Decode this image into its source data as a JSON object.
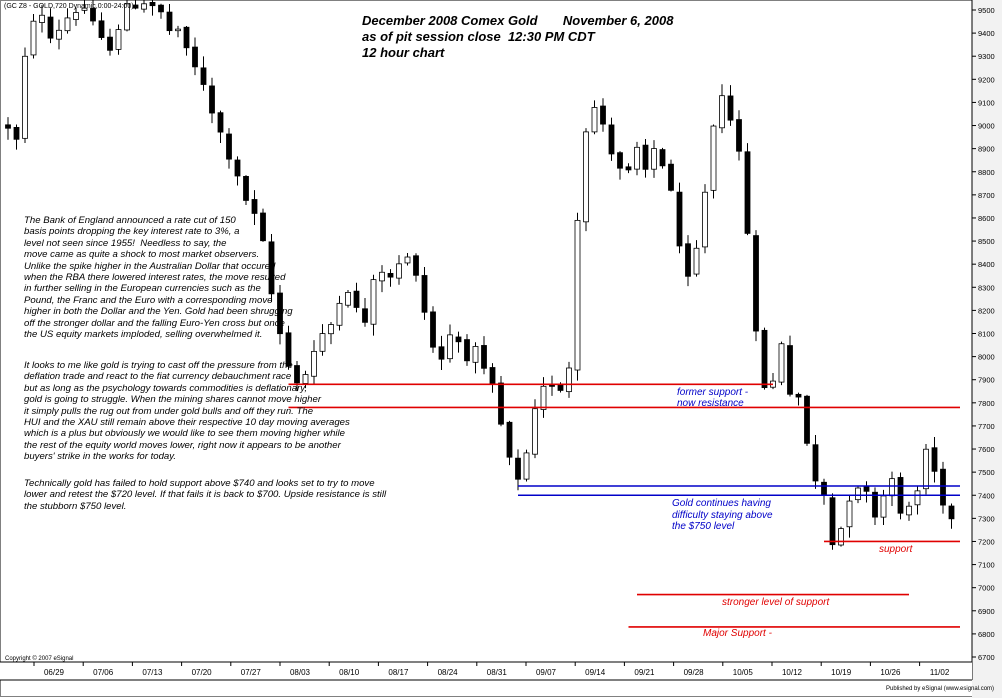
{
  "window": {
    "symbol_label": "(GC Z8 - GOLD,720 Dynamic,0:00-24:00)",
    "copyright": "Copyright © 2007 eSignal",
    "publisher": "Published by eSignal (www.esignal.com)"
  },
  "header": {
    "line1": "December 2008 Comex Gold       November 6, 2008",
    "line2": "as of pit session close  12:30 PM CDT",
    "line3": "12 hour chart"
  },
  "commentary": {
    "paragraph1": [
      "The Bank of England announced a rate cut of 150",
      "basis points dropping the key interest rate to 3%, a",
      "level not seen since 1955!  Needless to say, the",
      "move came as quite a shock to most market observers.",
      "Unlike the spike higher in the Australian Dollar that occured",
      "when the RBA there lowered interest rates, the move resulted",
      "in further selling in the European currencies such as the",
      "Pound, the Franc and the Euro with a corresponding move",
      "higher in both the Dollar and the Yen. Gold had been shrugging",
      "off the stronger dollar and the falling Euro-Yen cross but once",
      "the US equity markets imploded, selling overwhelmed it."
    ],
    "paragraph2": [
      "It looks to me like gold is trying to cast off the pressure from the",
      "deflation trade and react to the fiat currency debauchment race",
      "but as long as the psychology towards commodities is deflationary,",
      "gold is going to struggle. When the mining shares cannot move higher",
      "it simply pulls the rug out from under gold bulls and off they run. The",
      "HUI and the XAU still remain above their respective 10 day moving averages",
      "which is a plus but obviously we would like to see them moving higher while",
      "the rest of the equity world moves lower, right now it appears to be another",
      "buyers' strike in the works for today."
    ],
    "paragraph3": [
      "Technically gold has failed to hold support above $740 and looks set to try to move",
      "lower and retest the $720 level. If that fails it is back to $700. Upside resistance is still",
      "the stubborn $750 level."
    ]
  },
  "colors": {
    "background": "#ffffff",
    "candles": "#000000",
    "red_line": "#e00000",
    "blue_line": "#0000c8",
    "axis": "#000000",
    "panel": "#f2f2f2"
  },
  "chart_data": {
    "type": "candlestick",
    "title": "December 2008 Comex Gold",
    "timeframe": "12 hour chart",
    "x_tick_labels": [
      "06/29",
      "07/06",
      "07/13",
      "07/20",
      "07/27",
      "08/03",
      "08/10",
      "08/17",
      "08/24",
      "08/31",
      "09/07",
      "09/14",
      "09/21",
      "09/28",
      "10/05",
      "10/12",
      "10/19",
      "10/26",
      "11/02"
    ],
    "y_tick_labels": [
      "6700",
      "6800",
      "6900",
      "7000",
      "7100",
      "7200",
      "7300",
      "7400",
      "7500",
      "7600",
      "7700",
      "7800",
      "7900",
      "8000",
      "8100",
      "8200",
      "8300",
      "8400",
      "8500",
      "8600",
      "8700",
      "8800",
      "8900",
      "9000",
      "9100",
      "9200",
      "9300",
      "9400",
      "9500"
    ],
    "ylim": [
      6700,
      9500
    ],
    "grid": false,
    "legend": "none",
    "ohlc_path": [
      [
        0,
        9000
      ],
      [
        0.5,
        8930
      ],
      [
        1,
        9280
      ],
      [
        1.5,
        9470
      ],
      [
        2,
        9460
      ],
      [
        2.5,
        9380
      ],
      [
        3,
        9420
      ],
      [
        3.5,
        9470
      ],
      [
        4,
        9500
      ],
      [
        4.5,
        9510
      ],
      [
        5,
        9430
      ],
      [
        5.5,
        9360
      ],
      [
        6,
        9350
      ],
      [
        6.5,
        9430
      ],
      [
        7,
        9500
      ],
      [
        7.5,
        9530
      ],
      [
        8,
        9540
      ],
      [
        8.5,
        9520
      ],
      [
        9,
        9480
      ],
      [
        9.5,
        9410
      ],
      [
        10,
        9390
      ],
      [
        10.5,
        9330
      ],
      [
        11,
        9260
      ],
      [
        11.5,
        9160
      ],
      [
        12,
        9050
      ],
      [
        12.5,
        8960
      ],
      [
        13,
        8870
      ],
      [
        13.5,
        8760
      ],
      [
        14,
        8680
      ],
      [
        14.5,
        8600
      ],
      [
        15,
        8480
      ],
      [
        15.5,
        8270
      ],
      [
        16,
        8100
      ],
      [
        16.5,
        7980
      ],
      [
        17,
        7890
      ],
      [
        17.5,
        7930
      ],
      [
        18,
        8020
      ],
      [
        18.5,
        8080
      ],
      [
        19,
        8140
      ],
      [
        19.5,
        8260
      ],
      [
        20,
        8300
      ],
      [
        20.5,
        8200
      ],
      [
        21,
        8150
      ],
      [
        21.5,
        8310
      ],
      [
        22,
        8380
      ],
      [
        22.5,
        8330
      ],
      [
        23,
        8400
      ],
      [
        23.5,
        8420
      ],
      [
        24,
        8380
      ],
      [
        24.5,
        8200
      ],
      [
        25,
        8050
      ],
      [
        25.5,
        8000
      ],
      [
        26,
        8100
      ],
      [
        26.5,
        8070
      ],
      [
        27,
        8010
      ],
      [
        27.5,
        8020
      ],
      [
        28,
        7920
      ],
      [
        28.5,
        7860
      ],
      [
        29,
        7700
      ],
      [
        29.5,
        7550
      ],
      [
        30,
        7450
      ],
      [
        30.5,
        7560
      ],
      [
        31,
        7750
      ],
      [
        31.5,
        7850
      ],
      [
        32,
        7890
      ],
      [
        32.5,
        7870
      ],
      [
        33,
        7960
      ],
      [
        33.5,
        8600
      ],
      [
        34,
        9000
      ],
      [
        34.5,
        9070
      ],
      [
        35,
        9010
      ],
      [
        35.5,
        8900
      ],
      [
        36,
        8820
      ],
      [
        36.5,
        8790
      ],
      [
        37,
        8880
      ],
      [
        37.5,
        8800
      ],
      [
        38,
        8900
      ],
      [
        38.5,
        8840
      ],
      [
        39,
        8720
      ],
      [
        39.5,
        8450
      ],
      [
        40,
        8330
      ],
      [
        40.5,
        8460
      ],
      [
        41,
        8720
      ],
      [
        41.5,
        9000
      ],
      [
        42,
        9150
      ],
      [
        42.5,
        9050
      ],
      [
        43,
        8860
      ],
      [
        43.5,
        8550
      ],
      [
        44,
        8090
      ],
      [
        44.5,
        7880
      ],
      [
        45,
        7890
      ],
      [
        45.5,
        8070
      ],
      [
        46,
        7850
      ],
      [
        46.5,
        7800
      ],
      [
        47,
        7630
      ],
      [
        47.5,
        7450
      ],
      [
        48,
        7400
      ],
      [
        48.5,
        7200
      ],
      [
        49,
        7260
      ],
      [
        49.5,
        7400
      ],
      [
        50,
        7450
      ],
      [
        50.5,
        7400
      ],
      [
        51,
        7330
      ],
      [
        51.5,
        7400
      ],
      [
        52,
        7500
      ],
      [
        52.5,
        7300
      ],
      [
        53,
        7350
      ],
      [
        53.5,
        7420
      ],
      [
        54,
        7600
      ],
      [
        54.5,
        7500
      ],
      [
        55,
        7380
      ],
      [
        55.5,
        7300
      ]
    ],
    "horizontal_levels": [
      {
        "price": 7880,
        "color": "red",
        "from_x": 16.5,
        "to_x": 45
      },
      {
        "price": 7780,
        "color": "red",
        "from_x": 16.5,
        "to_x": 56
      },
      {
        "price": 7440,
        "color": "blue",
        "from_x": 30,
        "to_x": 56
      },
      {
        "price": 7400,
        "color": "blue",
        "from_x": 30,
        "to_x": 56
      },
      {
        "price": 7200,
        "color": "red",
        "from_x": 48,
        "to_x": 56
      },
      {
        "price": 6970,
        "color": "red",
        "from_x": 37,
        "to_x": 53
      },
      {
        "price": 6830,
        "color": "red",
        "from_x": 36.5,
        "to_x": 56
      }
    ],
    "annotations": [
      {
        "text": "former support -",
        "color": "blue"
      },
      {
        "text": "now resistance",
        "color": "blue"
      },
      {
        "text": "Gold continues having",
        "color": "blue"
      },
      {
        "text": "difficulty staying above",
        "color": "blue"
      },
      {
        "text": "the $750 level",
        "color": "blue"
      },
      {
        "text": "support",
        "color": "red"
      },
      {
        "text": "stronger level of support",
        "color": "red"
      },
      {
        "text": "Major Support -",
        "color": "red"
      }
    ]
  }
}
